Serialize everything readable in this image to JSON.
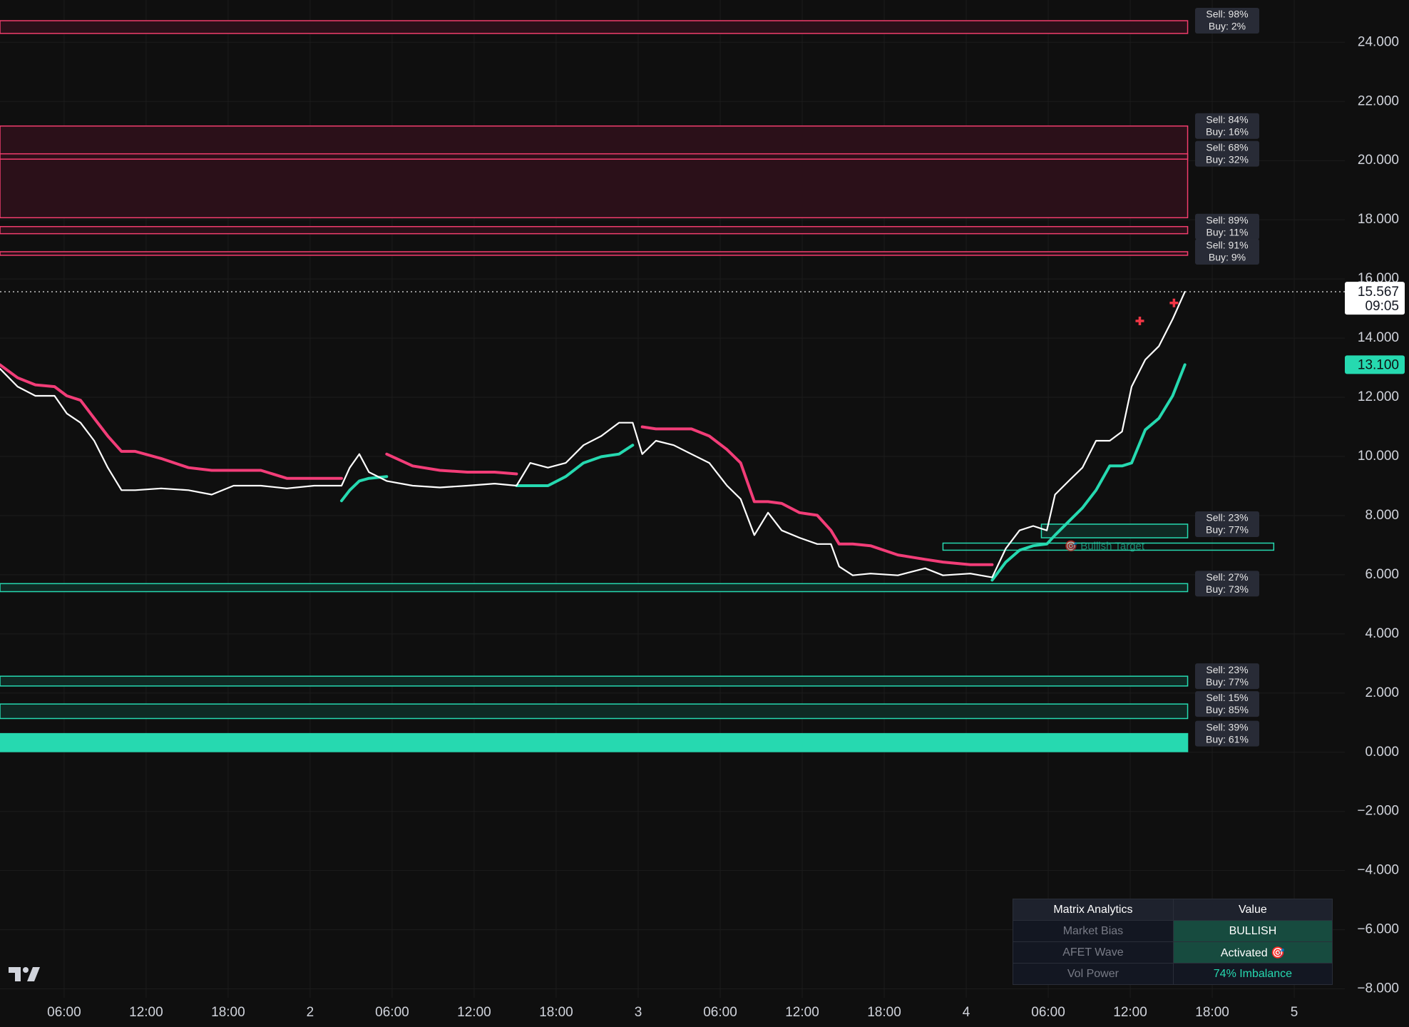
{
  "chart_data": {
    "type": "line",
    "x": [
      1.3,
      2.6,
      3.9,
      5.3,
      6.2,
      7.2,
      8.2,
      9.2,
      10.2,
      11.2,
      13.1,
      15.1,
      16.8,
      18.4,
      20.4,
      22.3,
      24.3,
      26.3,
      26.9,
      27.6,
      28.3,
      29.6,
      31.5,
      33.5,
      35.5,
      37.5,
      39.1,
      40.1,
      41.4,
      42.7,
      44,
      45.3,
      46.6,
      47.6,
      48.3,
      49.3,
      50.6,
      51.9,
      53.2,
      54.5,
      55.5,
      56.5,
      57.5,
      58.5,
      59.8,
      61.1,
      62.1,
      62.7,
      63.7,
      65,
      67,
      69,
      70.3,
      72.3,
      73.9,
      74.9,
      75.9,
      76.9,
      77.9,
      78.5,
      79.5,
      80.5,
      81.5,
      82.5,
      83.4,
      84.1,
      85.1,
      86.1,
      87.1,
      88
    ],
    "series": [
      {
        "color": "#ffffff",
        "values": [
          12.97,
          12.36,
          12.05,
          12.05,
          11.45,
          11.14,
          10.53,
          9.62,
          8.86,
          8.86,
          8.92,
          8.86,
          8.71,
          9.01,
          9.01,
          8.92,
          9.01,
          9.01,
          9.62,
          10.08,
          9.47,
          9.17,
          9.01,
          8.95,
          9.01,
          9.08,
          9.01,
          9.78,
          9.62,
          9.78,
          10.38,
          10.69,
          11.14,
          11.14,
          10.08,
          10.53,
          10.38,
          10.08,
          9.78,
          9.01,
          8.56,
          7.34,
          8.1,
          7.5,
          7.25,
          7.04,
          7.04,
          6.28,
          5.98,
          6.04,
          5.98,
          6.22,
          5.98,
          6.04,
          5.91,
          6.89,
          7.5,
          7.65,
          7.5,
          8.71,
          9.17,
          9.62,
          10.53,
          10.53,
          10.84,
          12.36,
          13.27,
          13.73,
          14.64,
          15.567
        ]
      },
      {
        "color": "#f23d78",
        "values": [
          13.1,
          12.66,
          12.42,
          12.36,
          12.05,
          11.9,
          11.29,
          10.69,
          10.17,
          10.17,
          9.93,
          9.62,
          9.53,
          9.53,
          9.53,
          9.26,
          9.26,
          9.26,
          null,
          null,
          null,
          10.08,
          9.68,
          9.53,
          9.47,
          9.47,
          9.41,
          null,
          null,
          null,
          null,
          null,
          null,
          null,
          11.0,
          10.93,
          10.93,
          10.93,
          10.69,
          10.23,
          9.78,
          8.47,
          8.47,
          8.41,
          8.1,
          8.01,
          7.5,
          7.04,
          7.04,
          6.98,
          6.67,
          6.52,
          6.43,
          6.34,
          6.34,
          null,
          null,
          null,
          null,
          null,
          null,
          null,
          null,
          null,
          null,
          null,
          null,
          null,
          null,
          null
        ]
      },
      {
        "color": "#26d9b0",
        "values": [
          null,
          null,
          null,
          null,
          null,
          null,
          null,
          null,
          null,
          null,
          null,
          null,
          null,
          null,
          null,
          null,
          null,
          8.5,
          8.86,
          9.17,
          9.26,
          9.32,
          null,
          null,
          null,
          null,
          9.01,
          9.01,
          9.01,
          9.32,
          9.78,
          9.99,
          10.08,
          10.38,
          null,
          null,
          null,
          null,
          null,
          null,
          null,
          null,
          null,
          null,
          null,
          null,
          null,
          null,
          null,
          null,
          null,
          null,
          null,
          null,
          5.82,
          6.43,
          6.83,
          6.98,
          7.04,
          7.34,
          7.8,
          8.26,
          8.86,
          9.68,
          9.68,
          9.78,
          10.9,
          11.29,
          12.05,
          13.1
        ],
        "value_labels": [
          null,
          null,
          null,
          null,
          null,
          null,
          null,
          null,
          null,
          null,
          null,
          null,
          null,
          null,
          null,
          null,
          null,
          null,
          null,
          null,
          null,
          null,
          null,
          null,
          null,
          null,
          null,
          null,
          null,
          null,
          null,
          null,
          null,
          null,
          null,
          null,
          null,
          null,
          null,
          null,
          null,
          null,
          null,
          null,
          null,
          null,
          null,
          null,
          null,
          null,
          null,
          null,
          null,
          null,
          null,
          null,
          null,
          null,
          null,
          null,
          null,
          null,
          null,
          null,
          null,
          null,
          null,
          null,
          null,
          "13.100"
        ]
      }
    ],
    "countdown": "09:05",
    "signals": {
      "x": [
        84.7,
        87.2
      ],
      "values": [
        14.58,
        15.19
      ],
      "color": "#f23645"
    },
    "zones": [
      {
        "top": 24.73,
        "bottom": 24.3,
        "sell": "Sell: 98%",
        "buy": "Buy: 2%",
        "color": "#f23d6d",
        "fill": "#2b1019"
      },
      {
        "top": 21.17,
        "bottom": 18.07,
        "sell": "Sell: 84%",
        "buy": "Buy: 16%",
        "color": "#f23d6d",
        "fill": "#2b1019"
      },
      {
        "top": 20.23,
        "bottom": 20.05,
        "sell": "Sell: 68%",
        "buy": "Buy: 32%",
        "color": "#f23d6d",
        "fill": "#2b1019"
      },
      {
        "top": 17.77,
        "bottom": 17.53,
        "sell": "Sell: 89%",
        "buy": "Buy: 11%",
        "color": "#f23d6d",
        "fill": "#2b1019"
      },
      {
        "top": 16.92,
        "bottom": 16.8,
        "sell": "Sell: 91%",
        "buy": "Buy: 9%",
        "color": "#f23d6d",
        "fill": "#2b1019"
      },
      {
        "top": 7.71,
        "bottom": 7.25,
        "start": 77.5,
        "sell": "Sell: 23%",
        "buy": "Buy: 77%",
        "color": "#26d9b0",
        "fill": "#0f2a24"
      },
      {
        "top": 5.7,
        "bottom": 5.43,
        "sell": "Sell: 27%",
        "buy": "Buy: 73%",
        "color": "#26d9b0",
        "fill": "#0f2a24"
      },
      {
        "top": 2.57,
        "bottom": 2.24,
        "sell": "Sell: 23%",
        "buy": "Buy: 77%",
        "color": "#26d9b0",
        "fill": "#0f2a24"
      },
      {
        "top": 1.63,
        "bottom": 1.14,
        "sell": "Sell: 15%",
        "buy": "Buy: 85%",
        "color": "#26d9b0",
        "fill": "#0f2a24"
      },
      {
        "top": 0.63,
        "bottom": 0.02,
        "sell": "Sell: 39%",
        "buy": "Buy: 61%",
        "color": "#26d9b0",
        "fill": "#26d9b0"
      }
    ],
    "zone_end": 88.2,
    "target": {
      "label": "🎯 Bullish Target",
      "x0": 70.3,
      "x1": 94.5,
      "top": 7.07,
      "bottom": 6.83,
      "color": "#26d9b0"
    },
    "xlim": [
      1.31,
      99.7
    ],
    "ylim": [
      -8.3,
      25.43
    ],
    "xticks": [
      {
        "value": 6,
        "label": "06:00"
      },
      {
        "value": 12,
        "label": "12:00"
      },
      {
        "value": 18,
        "label": "18:00"
      },
      {
        "value": 24,
        "label": "2"
      },
      {
        "value": 30,
        "label": "06:00"
      },
      {
        "value": 36,
        "label": "12:00"
      },
      {
        "value": 42,
        "label": "18:00"
      },
      {
        "value": 48,
        "label": "3"
      },
      {
        "value": 54,
        "label": "06:00"
      },
      {
        "value": 60,
        "label": "12:00"
      },
      {
        "value": 66,
        "label": "18:00"
      },
      {
        "value": 72,
        "label": "4"
      },
      {
        "value": 78,
        "label": "06:00"
      },
      {
        "value": 84,
        "label": "12:00"
      },
      {
        "value": 90,
        "label": "18:00"
      },
      {
        "value": 96,
        "label": "5"
      }
    ],
    "yticks": [
      {
        "value": -8,
        "label": "−8.000"
      },
      {
        "value": -6,
        "label": "−6.000"
      },
      {
        "value": -4,
        "label": "−4.000"
      },
      {
        "value": -2,
        "label": "−2.000"
      },
      {
        "value": 0,
        "label": "0.000"
      },
      {
        "value": 2,
        "label": "2.000"
      },
      {
        "value": 4,
        "label": "4.000"
      },
      {
        "value": 6,
        "label": "6.000"
      },
      {
        "value": 8,
        "label": "8.000"
      },
      {
        "value": 10,
        "label": "10.000"
      },
      {
        "value": 12,
        "label": "12.000"
      },
      {
        "value": 14,
        "label": "14.000"
      },
      {
        "value": 16,
        "label": "16.000"
      },
      {
        "value": 18,
        "label": "18.000"
      },
      {
        "value": 20,
        "label": "20.000"
      },
      {
        "value": 22,
        "label": "22.000"
      },
      {
        "value": 24,
        "label": "24.000"
      }
    ],
    "grid": true
  },
  "table": {
    "header": [
      "Matrix Analytics",
      "Value"
    ],
    "rows": [
      [
        "Market Bias",
        "BULLISH"
      ],
      [
        "AFET Wave",
        "Activated 🎯"
      ],
      [
        "Vol Power",
        "74% Imbalance"
      ]
    ]
  }
}
